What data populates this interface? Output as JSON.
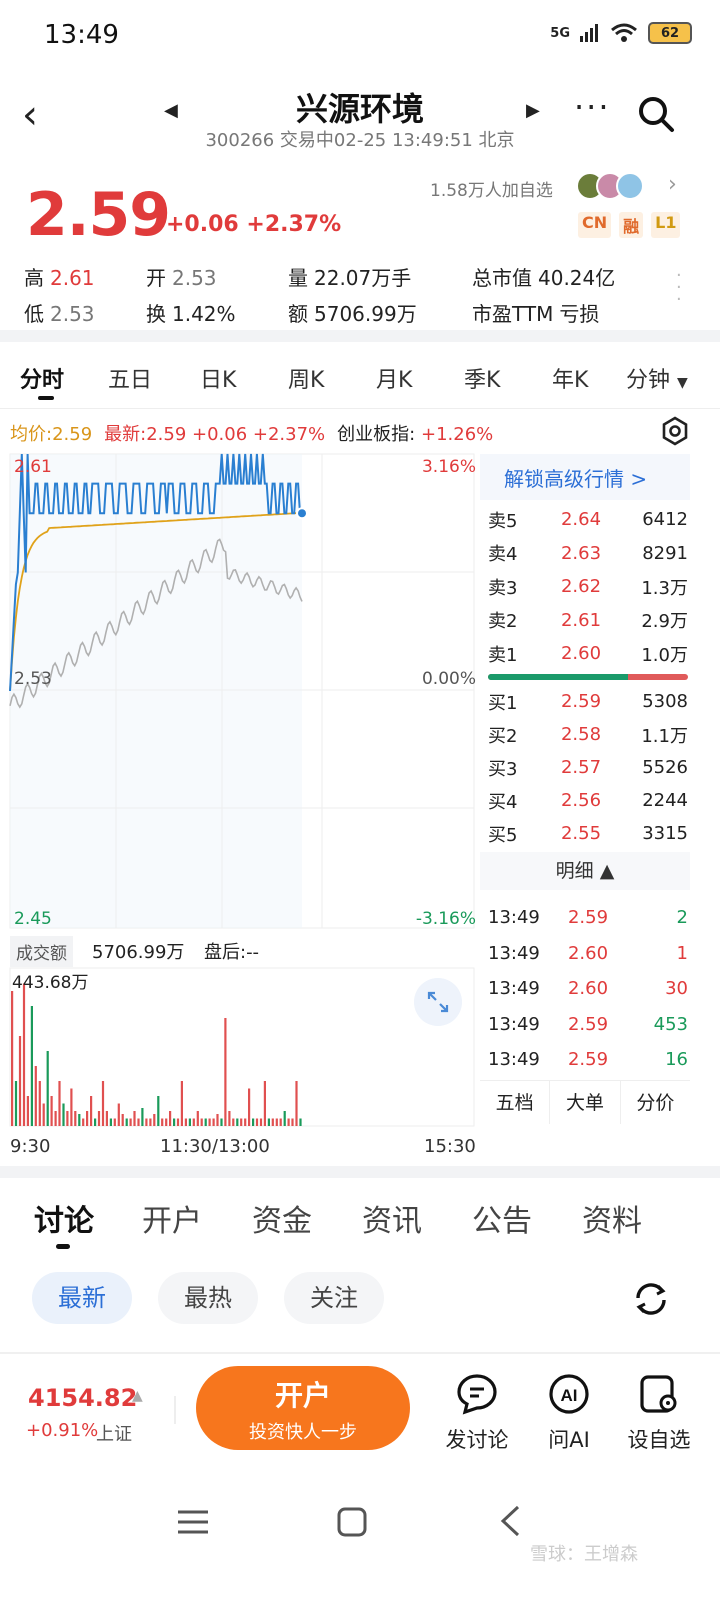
{
  "status_bar": {
    "time": "13:49",
    "network": "5G",
    "battery": "62"
  },
  "header": {
    "title": "兴源环境",
    "subtitle": "300266 交易中02-25 13:49:51 北京"
  },
  "quote": {
    "price": "2.59",
    "change": "+0.06",
    "change_pct": "+2.37%",
    "followers": "1.58万人加自选",
    "badges": [
      "CN",
      "融",
      "L1"
    ],
    "stats": {
      "high_label": "高",
      "high": "2.61",
      "open_label": "开",
      "open": "2.53",
      "volume_label": "量",
      "volume": "22.07万手",
      "mktcap_label": "总市值",
      "mktcap": "40.24亿",
      "low_label": "低",
      "low": "2.53",
      "turnover_label": "换",
      "turnover": "1.42%",
      "amount_label": "额",
      "amount": "5706.99万",
      "pe_label": "市盈TTM",
      "pe": "亏损"
    }
  },
  "chart_tabs": [
    "分时",
    "五日",
    "日K",
    "周K",
    "月K",
    "季K",
    "年K",
    "分钟"
  ],
  "info_bar": {
    "avg": "均价:2.59",
    "latest": "最新:2.59 +0.06 +2.37%",
    "board_label": "创业板指:",
    "board_chg": "+1.26%"
  },
  "intraday_axes": {
    "y_top": "2.61",
    "y_mid": "2.53",
    "y_bottom": "2.45",
    "pct_top": "3.16%",
    "pct_mid": "0.00%",
    "pct_bottom": "-3.16%",
    "x_start": "9:30",
    "x_mid": "11:30/13:00",
    "x_end": "15:30"
  },
  "volume_section": {
    "label": "成交额",
    "amount": "5706.99万",
    "after_hours": "盘后:--",
    "peak": "443.68万"
  },
  "order_book": {
    "unlock": "解锁高级行情 >",
    "asks": [
      {
        "label": "卖5",
        "price": "2.64",
        "vol": "6412"
      },
      {
        "label": "卖4",
        "price": "2.63",
        "vol": "8291"
      },
      {
        "label": "卖3",
        "price": "2.62",
        "vol": "1.3万"
      },
      {
        "label": "卖2",
        "price": "2.61",
        "vol": "2.9万"
      },
      {
        "label": "卖1",
        "price": "2.60",
        "vol": "1.0万"
      }
    ],
    "bid_ratio": 0.7,
    "bids": [
      {
        "label": "买1",
        "price": "2.59",
        "vol": "5308"
      },
      {
        "label": "买2",
        "price": "2.58",
        "vol": "1.1万"
      },
      {
        "label": "买3",
        "price": "2.57",
        "vol": "5526"
      },
      {
        "label": "买4",
        "price": "2.56",
        "vol": "2244"
      },
      {
        "label": "买5",
        "price": "2.55",
        "vol": "3315"
      }
    ],
    "detail_header": "明细 ▲",
    "ticks": [
      {
        "time": "13:49",
        "price": "2.59",
        "vol": "2",
        "color": "#1a9a5a"
      },
      {
        "time": "13:49",
        "price": "2.60",
        "vol": "1",
        "color": "#e03b3b"
      },
      {
        "time": "13:49",
        "price": "2.60",
        "vol": "30",
        "color": "#e03b3b"
      },
      {
        "time": "13:49",
        "price": "2.59",
        "vol": "453",
        "color": "#1a9a5a"
      },
      {
        "time": "13:49",
        "price": "2.59",
        "vol": "16",
        "color": "#1a9a5a"
      }
    ],
    "footer": [
      "五档",
      "大单",
      "分价"
    ]
  },
  "bottom_tabs": [
    "讨论",
    "开户",
    "资金",
    "资讯",
    "公告",
    "资料"
  ],
  "filter_pills": [
    "最新",
    "最热",
    "关注"
  ],
  "bottom_bar": {
    "index_value": "4154.82",
    "index_change": "+0.91%",
    "index_name": "上证",
    "open_account": "开户",
    "open_account_sub": "投资快人一步",
    "actions": [
      "发讨论",
      "问AI",
      "设自选"
    ]
  },
  "watermark": "雪球：王增森",
  "colors": {
    "up": "#e03b3b",
    "down": "#1a9a5a",
    "price_line": "#2a7fd1",
    "avg_line": "#e0a21a",
    "index_line": "#b0b0b0",
    "accent": "#f7761d"
  }
}
